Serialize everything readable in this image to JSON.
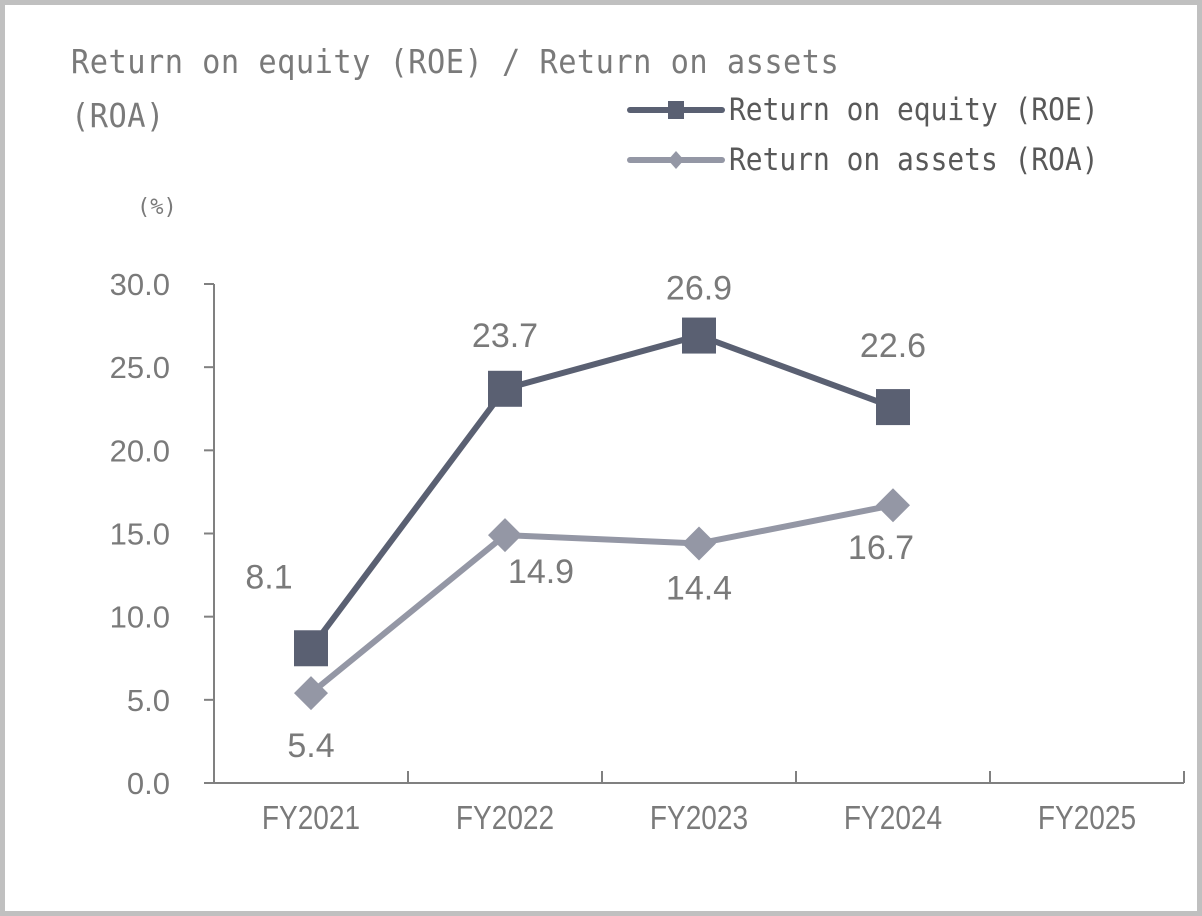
{
  "title": "Return on equity (ROE) / Return on assets (ROA)",
  "title_lines": [
    "Return on equity (ROE) / Return on assets",
    "(ROA)"
  ],
  "unit_label": "(%)",
  "legend": [
    {
      "label": "Return on equity (ROE)",
      "marker": "square-marker",
      "color": "#5a6072"
    },
    {
      "label": "Return on assets (ROA)",
      "marker": "diamond-marker",
      "color": "#9497a5"
    }
  ],
  "colors": {
    "roe": "#5a6072",
    "roa": "#9497a5",
    "axis": "#808080",
    "text": "#7a7a7a",
    "border": "#c0c0c0"
  },
  "chart_data": {
    "type": "line",
    "title": "Return on equity (ROE) / Return on assets (ROA)",
    "xlabel": "",
    "ylabel": "(%)",
    "categories": [
      "FY2021",
      "FY2022",
      "FY2023",
      "FY2024",
      "FY2025"
    ],
    "series": [
      {
        "name": "Return on equity (ROE)",
        "values": [
          8.1,
          23.7,
          26.9,
          22.6,
          null
        ],
        "labels": [
          "8.1",
          "23.7",
          "26.9",
          "22.6"
        ]
      },
      {
        "name": "Return on assets (ROA)",
        "values": [
          5.4,
          14.9,
          14.4,
          16.7,
          null
        ],
        "labels": [
          "5.4",
          "14.9",
          "14.4",
          "16.7"
        ]
      }
    ],
    "ylim": [
      0,
      30
    ],
    "yticks": [
      "0.0",
      "5.0",
      "10.0",
      "15.0",
      "20.0",
      "25.0",
      "30.0"
    ],
    "grid": false,
    "legend_position": "top-right"
  }
}
